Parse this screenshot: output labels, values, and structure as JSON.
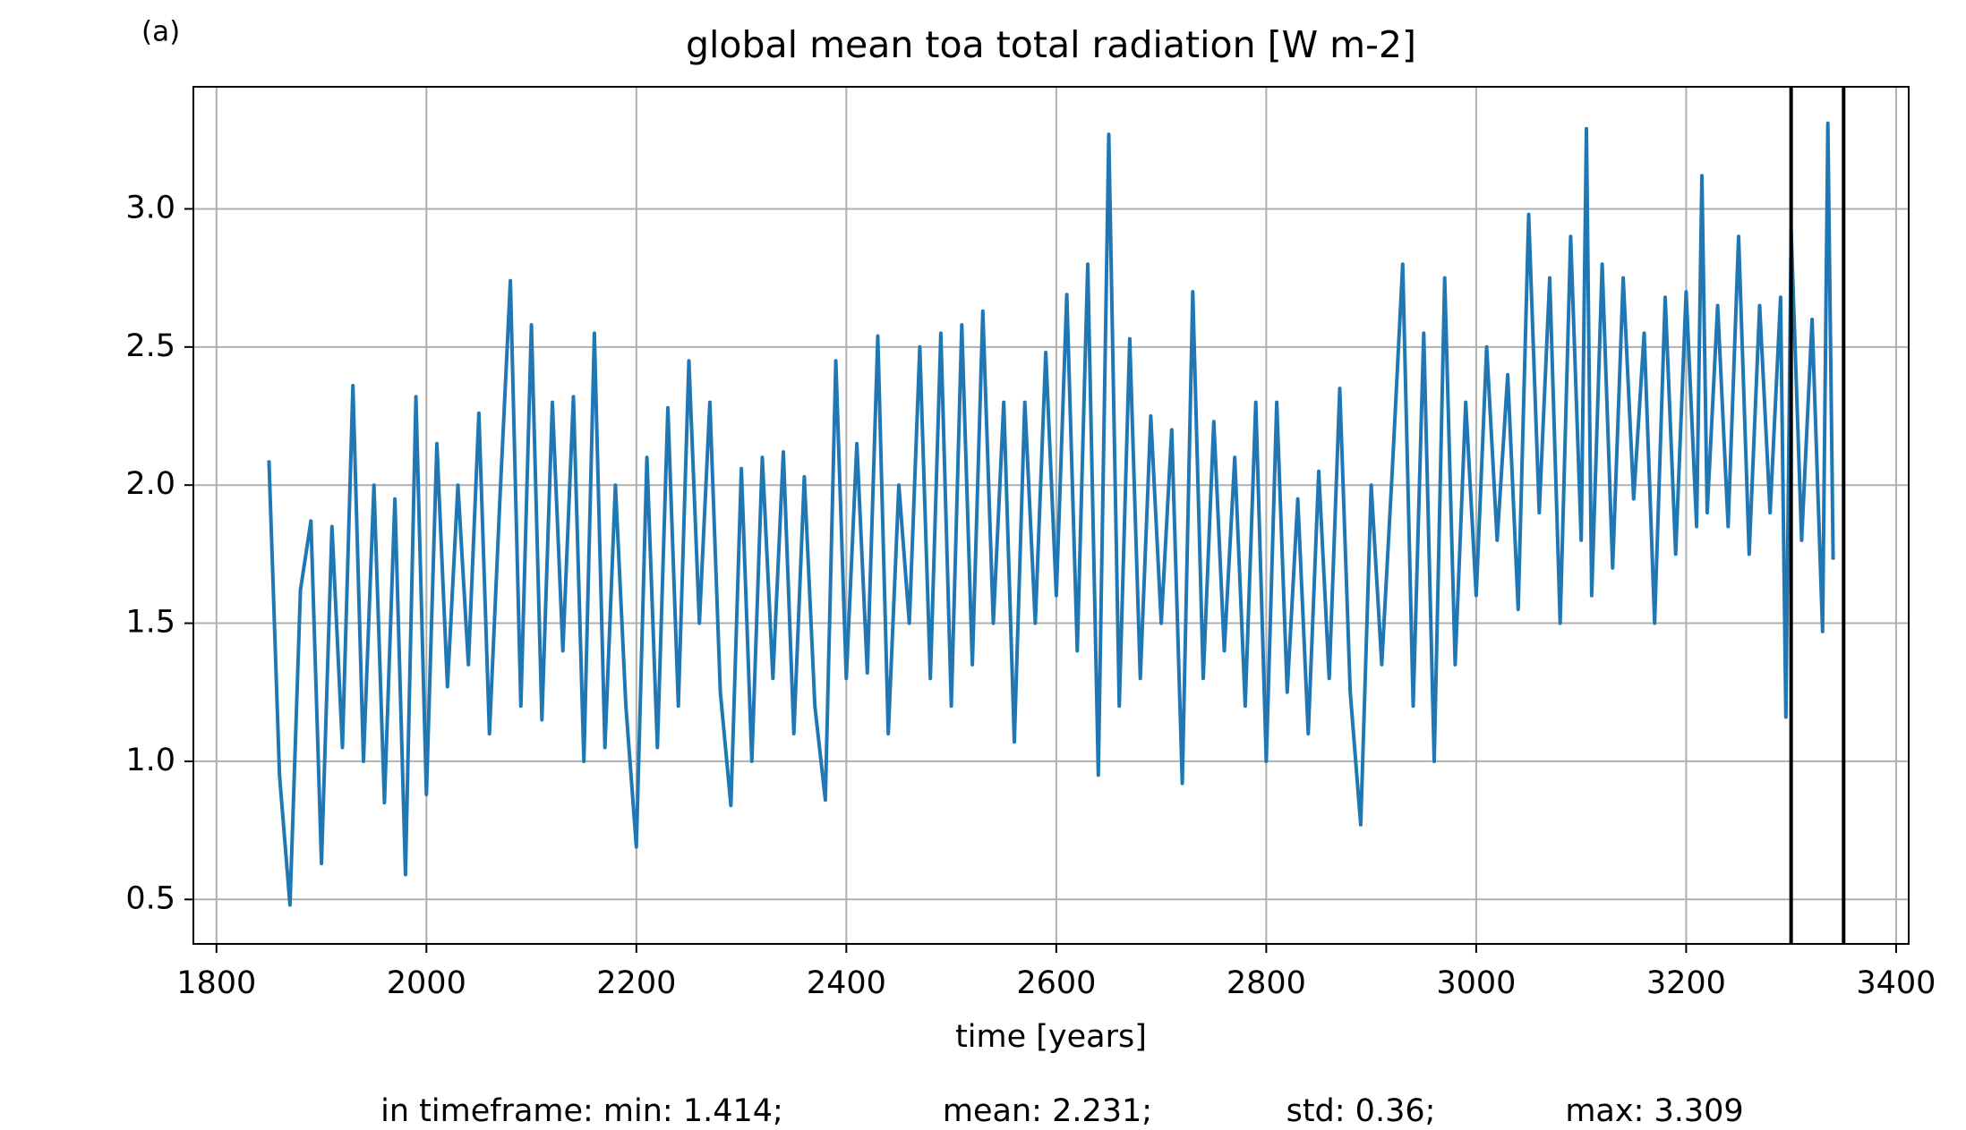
{
  "chart_data": {
    "type": "line",
    "panel_label": "(a)",
    "title": "global mean toa total radiation [W m-2]",
    "xlabel": "time [years]",
    "x": [
      1850,
      1860,
      1870,
      1880,
      1890,
      1900,
      1910,
      1920,
      1930,
      1940,
      1950,
      1960,
      1970,
      1980,
      1990,
      2000,
      2010,
      2020,
      2030,
      2040,
      2050,
      2060,
      2070,
      2080,
      2090,
      2100,
      2110,
      2120,
      2130,
      2140,
      2150,
      2160,
      2170,
      2180,
      2190,
      2200,
      2210,
      2220,
      2230,
      2240,
      2250,
      2260,
      2270,
      2280,
      2290,
      2300,
      2310,
      2320,
      2330,
      2340,
      2350,
      2360,
      2370,
      2380,
      2390,
      2400,
      2410,
      2420,
      2430,
      2440,
      2450,
      2460,
      2470,
      2480,
      2490,
      2500,
      2510,
      2520,
      2530,
      2540,
      2550,
      2560,
      2570,
      2580,
      2590,
      2600,
      2610,
      2620,
      2630,
      2640,
      2650,
      2660,
      2670,
      2680,
      2690,
      2700,
      2710,
      2720,
      2730,
      2740,
      2750,
      2760,
      2770,
      2780,
      2790,
      2800,
      2810,
      2820,
      2830,
      2840,
      2850,
      2860,
      2870,
      2880,
      2890,
      2900,
      2910,
      2920,
      2930,
      2940,
      2950,
      2960,
      2970,
      2980,
      2990,
      3000,
      3010,
      3020,
      3030,
      3040,
      3050,
      3060,
      3070,
      3080,
      3090,
      3100,
      3105,
      3110,
      3120,
      3130,
      3140,
      3150,
      3160,
      3170,
      3180,
      3190,
      3200,
      3210,
      3215,
      3220,
      3230,
      3240,
      3250,
      3260,
      3270,
      3280,
      3290,
      3295,
      3300,
      3310,
      3320,
      3330,
      3335,
      3340
    ],
    "series": [
      {
        "color": "#1f77b4",
        "values": [
          2.09,
          0.95,
          0.48,
          1.62,
          1.87,
          0.63,
          1.85,
          1.05,
          2.36,
          1.0,
          2.0,
          0.85,
          1.95,
          0.59,
          2.32,
          0.88,
          2.15,
          1.27,
          2.0,
          1.35,
          2.26,
          1.1,
          1.95,
          2.74,
          1.2,
          2.58,
          1.15,
          2.3,
          1.4,
          2.32,
          1.0,
          2.55,
          1.05,
          2.0,
          1.2,
          0.69,
          2.1,
          1.05,
          2.28,
          1.2,
          2.45,
          1.5,
          2.3,
          1.25,
          0.84,
          2.06,
          1.0,
          2.1,
          1.3,
          2.12,
          1.1,
          2.03,
          1.2,
          0.86,
          2.45,
          1.3,
          2.15,
          1.32,
          2.54,
          1.1,
          2.0,
          1.5,
          2.5,
          1.3,
          2.55,
          1.2,
          2.58,
          1.35,
          2.63,
          1.5,
          2.3,
          1.07,
          2.3,
          1.5,
          2.48,
          1.6,
          2.69,
          1.4,
          2.8,
          0.95,
          3.27,
          1.2,
          2.53,
          1.3,
          2.25,
          1.5,
          2.2,
          0.92,
          2.7,
          1.3,
          2.23,
          1.4,
          2.1,
          1.2,
          2.3,
          1.0,
          2.3,
          1.25,
          1.95,
          1.1,
          2.05,
          1.3,
          2.35,
          1.25,
          0.77,
          2.0,
          1.35,
          2.05,
          2.8,
          1.2,
          2.55,
          1.0,
          2.75,
          1.35,
          2.3,
          1.6,
          2.5,
          1.8,
          2.4,
          1.55,
          2.98,
          1.9,
          2.75,
          1.5,
          2.9,
          1.8,
          3.29,
          1.6,
          2.8,
          1.7,
          2.75,
          1.95,
          2.55,
          1.5,
          2.68,
          1.75,
          2.7,
          1.85,
          3.12,
          1.9,
          2.65,
          1.85,
          2.9,
          1.75,
          2.65,
          1.9,
          2.68,
          1.16,
          2.92,
          1.8,
          2.6,
          1.47,
          3.31,
          1.73
        ]
      }
    ],
    "vlines": [
      3300,
      3350
    ],
    "vline_color": "#000000",
    "xlim": [
      1778,
      3412
    ],
    "ylim": [
      0.339,
      3.442
    ],
    "xticks": [
      1800,
      2000,
      2200,
      2400,
      2600,
      2800,
      3000,
      3200,
      3400
    ],
    "yticks": [
      {
        "value": 0.5,
        "label": "0.5"
      },
      {
        "value": 1.0,
        "label": "1.0"
      },
      {
        "value": 1.5,
        "label": "1.5"
      },
      {
        "value": 2.0,
        "label": "2.0"
      },
      {
        "value": 2.5,
        "label": "2.5"
      },
      {
        "value": 3.0,
        "label": "3.0"
      }
    ],
    "grid": true,
    "stats": [
      "in timeframe: min: 1.414;",
      "mean: 2.231;",
      "std: 0.36;",
      "max: 3.309"
    ]
  }
}
